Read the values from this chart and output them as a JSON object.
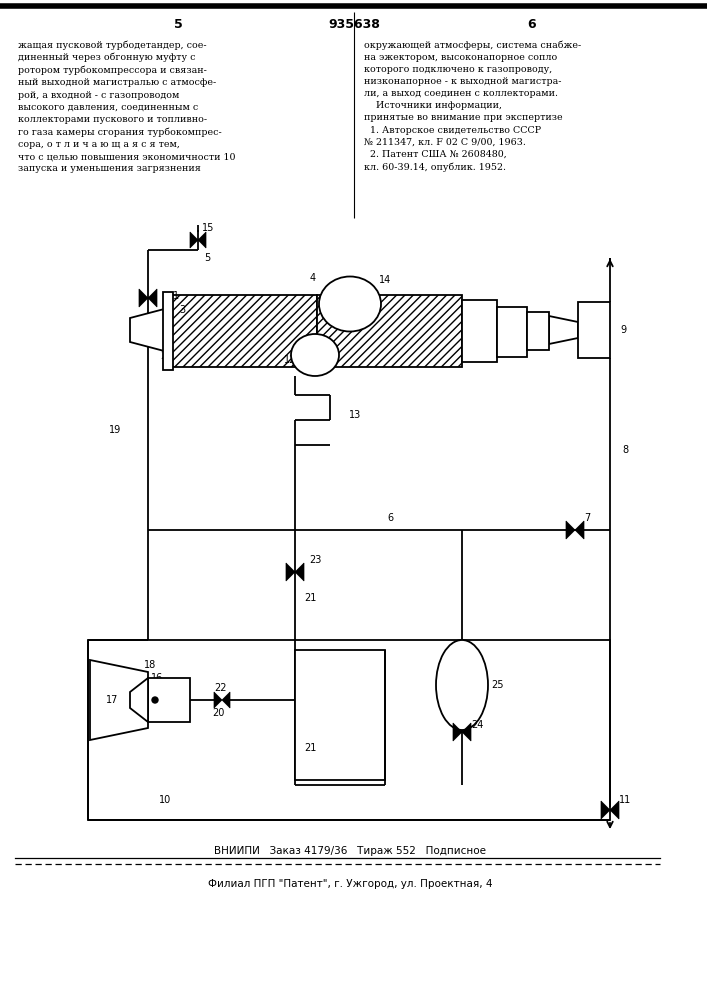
{
  "bg_color": "#ffffff",
  "line_color": "#000000",
  "text_color": "#000000",
  "top_text_left": "жащая пусковой турбодетандер, сое-\nдиненный через обгонную муфту с\nротором турбокомпрессора и связан-\nный выходной магистралью с атмосфе-\nрой, а входной - с газопроводом\nвысокого давления, соединенным с\nколлекторами пускового и топливно-\nго газа камеры сгорания турбокомпрес-\nсора, о т л и ч а ю щ а я с я тем,\nчто с целью повышения экономичности 10\nзапуска и уменьшения загрязнения",
  "top_text_right": "окружающей атмосферы, система снабже-\nна эжектором, высоконапорное сопло\nкоторого подключено к газопроводу,\nнизконапорное - к выходной магистра-\nли, а выход соединен с коллекторами.\n    Источники информации,\nпринятые во внимание при экспертизе\n  1. Авторское свидетельство СССР\n№ 211347, кл. F 02 C 9/00, 1963.\n  2. Патент США № 2608480,\nкл. 60-39.14, опублик. 1952.",
  "bottom_text": "ВНИИПИ   Заказ 4179/36   Тираж 552   Подписное",
  "bottom_text2": "Филиал ПГП \"Патент\", г. Ужгород, ул. Проектная, 4",
  "figsize": [
    7.07,
    10.0
  ],
  "dpi": 100
}
